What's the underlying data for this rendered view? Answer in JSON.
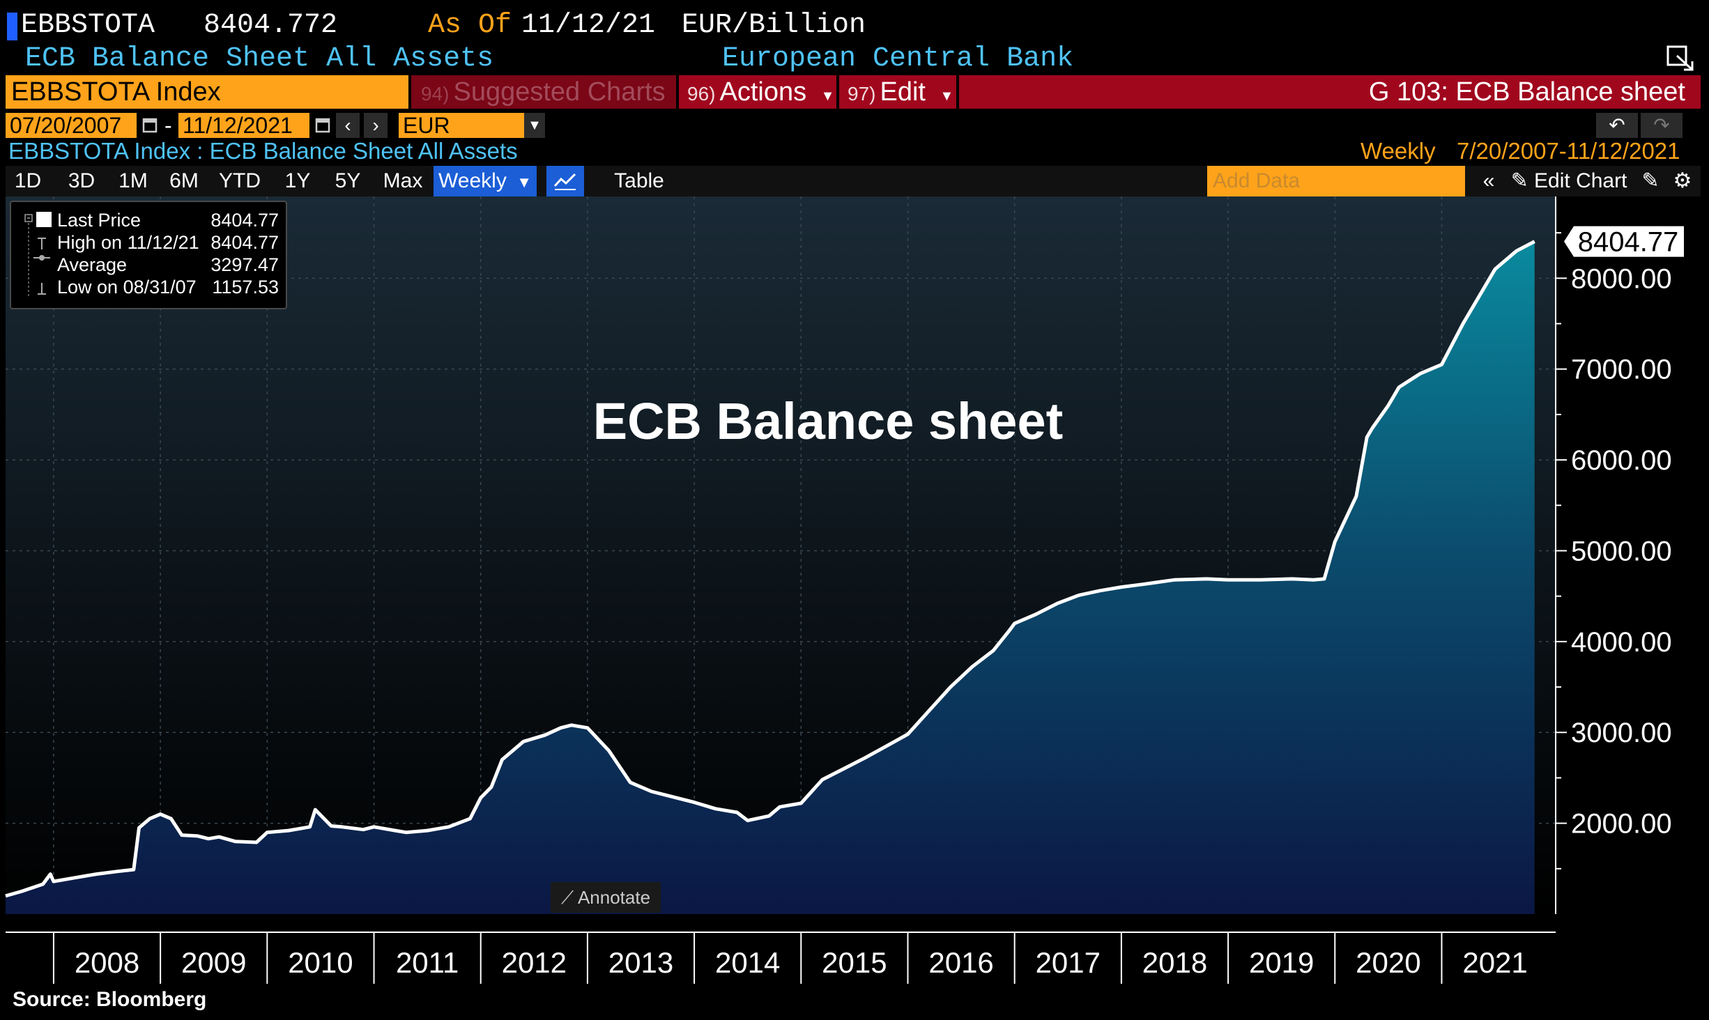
{
  "header": {
    "ticker": "EBBSTOTA",
    "last_value": "8404.772",
    "as_of_label": "As Of",
    "as_of_date": "11/12/21",
    "units": "EUR/Billion",
    "description": "ECB Balance Sheet All Assets",
    "source_org": "European Central Bank"
  },
  "toolbar": {
    "security": "EBBSTOTA Index",
    "suggested": "Suggested Charts",
    "suggested_num": "94)",
    "actions": "Actions",
    "actions_num": "96)",
    "edit": "Edit",
    "edit_num": "97)",
    "page_title": "G 103: ECB Balance sheet"
  },
  "dates": {
    "start": "07/20/2007",
    "separator": "-",
    "end": "11/12/2021",
    "currency": "EUR"
  },
  "subtitle": {
    "series_label": "EBBSTOTA Index : ECB Balance Sheet All Assets",
    "frequency": "Weekly",
    "range": "7/20/2007-11/12/2021"
  },
  "periods": [
    "1D",
    "3D",
    "1M",
    "6M",
    "YTD",
    "1Y",
    "5Y",
    "Max"
  ],
  "period_selected": "Weekly",
  "table_label": "Table",
  "add_data_placeholder": "Add Data",
  "edit_chart_label": "Edit Chart",
  "legend": {
    "rows": [
      {
        "label": "Last Price",
        "value": "8404.77"
      },
      {
        "label": "High on 11/12/21",
        "value": "8404.77"
      },
      {
        "label": "Average",
        "value": "3297.47"
      },
      {
        "label": "Low on 08/31/07",
        "value": "1157.53"
      }
    ]
  },
  "annotate_label": "Annotate",
  "source": "Source:  Bloomberg",
  "colors": {
    "accent_orange": "#ffa31a",
    "toolbar_red": "#a0071d",
    "header_cyan": "#4fc3f7",
    "area_top": "#0a8a9e",
    "area_bottom": "#0b1744",
    "line": "#ffffff"
  },
  "chart_data": {
    "type": "area",
    "title": "ECB Balance sheet",
    "last_label": "8404.77",
    "x_tick_labels": [
      "2008",
      "2009",
      "2010",
      "2011",
      "2012",
      "2013",
      "2014",
      "2015",
      "2016",
      "2017",
      "2018",
      "2019",
      "2020",
      "2021"
    ],
    "y_ticks": [
      2000,
      3000,
      4000,
      5000,
      6000,
      7000,
      8000
    ],
    "y_tick_labels": [
      "2000.00",
      "3000.00",
      "4000.00",
      "5000.00",
      "6000.00",
      "7000.00",
      "8000.00"
    ],
    "ylim": [
      1000,
      8900
    ],
    "xlim": [
      2007.55,
      2021.95
    ],
    "grid": true,
    "series": [
      {
        "x": [
          2007.55,
          2007.7,
          2007.9,
          2007.97,
          2008.0,
          2008.2,
          2008.4,
          2008.6,
          2008.75,
          2008.8,
          2008.9,
          2009.0,
          2009.1,
          2009.2,
          2009.35,
          2009.45,
          2009.55,
          2009.7,
          2009.9,
          2010.0,
          2010.2,
          2010.4,
          2010.45,
          2010.6,
          2010.7,
          2010.9,
          2011.0,
          2011.2,
          2011.3,
          2011.5,
          2011.7,
          2011.9,
          2012.0,
          2012.1,
          2012.2,
          2012.4,
          2012.6,
          2012.75,
          2012.85,
          2013.0,
          2013.2,
          2013.4,
          2013.6,
          2013.8,
          2014.0,
          2014.2,
          2014.4,
          2014.5,
          2014.7,
          2014.8,
          2015.0,
          2015.2,
          2015.4,
          2015.6,
          2015.8,
          2016.0,
          2016.2,
          2016.4,
          2016.6,
          2016.8,
          2016.95,
          2017.0,
          2017.2,
          2017.4,
          2017.6,
          2017.8,
          2018.0,
          2018.2,
          2018.5,
          2018.8,
          2019.0,
          2019.3,
          2019.6,
          2019.8,
          2019.9,
          2020.0,
          2020.2,
          2020.3,
          2020.35,
          2020.5,
          2020.6,
          2020.8,
          2021.0,
          2021.2,
          2021.3,
          2021.5,
          2021.7,
          2021.87
        ],
        "y": [
          1200,
          1250,
          1330,
          1440,
          1360,
          1400,
          1440,
          1470,
          1490,
          1950,
          2050,
          2100,
          2050,
          1870,
          1860,
          1830,
          1850,
          1800,
          1790,
          1900,
          1920,
          1960,
          2150,
          1970,
          1960,
          1930,
          1960,
          1920,
          1900,
          1920,
          1960,
          2050,
          2280,
          2400,
          2700,
          2900,
          2970,
          3050,
          3080,
          3050,
          2800,
          2450,
          2350,
          2290,
          2230,
          2160,
          2120,
          2030,
          2080,
          2180,
          2220,
          2480,
          2600,
          2720,
          2850,
          2980,
          3240,
          3500,
          3720,
          3900,
          4120,
          4200,
          4300,
          4420,
          4510,
          4560,
          4600,
          4630,
          4680,
          4690,
          4680,
          4680,
          4690,
          4680,
          4690,
          5100,
          5600,
          6250,
          6350,
          6600,
          6800,
          6950,
          7050,
          7500,
          7700,
          8100,
          8300,
          8404.77
        ]
      }
    ]
  }
}
